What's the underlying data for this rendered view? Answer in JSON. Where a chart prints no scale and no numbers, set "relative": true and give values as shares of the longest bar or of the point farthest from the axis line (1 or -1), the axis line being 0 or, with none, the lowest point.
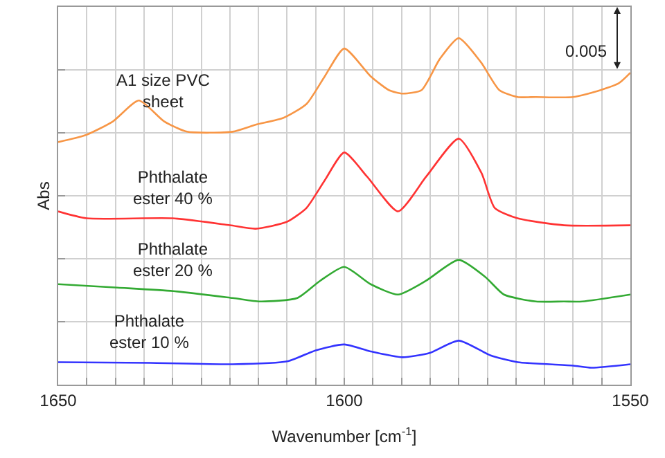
{
  "chart_data": {
    "type": "line",
    "relative": true,
    "xlabel": "Wavenumber [cm$^{-1}$]",
    "ylabel": "Abs",
    "xlim": [
      1650,
      1550
    ],
    "xticks": [
      1650,
      {
        "value": 1645,
        "label": null
      },
      {
        "value": 1640,
        "label": null
      },
      {
        "value": 1635,
        "label": null
      },
      {
        "value": 1630,
        "label": null
      },
      {
        "value": 1625,
        "label": null
      },
      {
        "value": 1620,
        "label": null
      },
      {
        "value": 1615,
        "label": null
      },
      {
        "value": 1610,
        "label": null
      },
      {
        "value": 1605,
        "label": null
      },
      1600,
      {
        "value": 1595,
        "label": null
      },
      {
        "value": 1590,
        "label": null
      },
      {
        "value": 1585,
        "label": null
      },
      {
        "value": 1580,
        "label": null
      },
      {
        "value": 1575,
        "label": null
      },
      {
        "value": 1570,
        "label": null
      },
      {
        "value": 1565,
        "label": null
      },
      {
        "value": 1560,
        "label": null
      },
      {
        "value": 1555,
        "label": null
      },
      1550
    ],
    "grid": true,
    "legend": false,
    "marker": "none",
    "line_style": "solid",
    "annotations": [
      "0.005"
    ],
    "series": [
      {
        "name": "A1 size PVC sheet",
        "color": "#f79646",
        "x": [
          1650,
          1645.2,
          1640.4,
          1635.9,
          1631.5,
          1627.5,
          1619.5,
          1615.5,
          1610.6,
          1606.6,
          1603.4,
          1600,
          1595.4,
          1592.2,
          1589.8,
          1586.5,
          1583.3,
          1580,
          1576.1,
          1572.9,
          1569.7,
          1566.5,
          1560,
          1555.2,
          1552,
          1550
        ],
        "values": [
          0.7,
          0.72,
          0.76,
          0.82,
          0.76,
          0.73,
          0.73,
          0.75,
          0.77,
          0.81,
          0.89,
          0.97,
          0.89,
          0.85,
          0.84,
          0.85,
          0.94,
          1.0,
          0.93,
          0.85,
          0.83,
          0.83,
          0.83,
          0.85,
          0.87,
          0.9
        ]
      },
      {
        "name": "Phthalate ester 40 %",
        "color": "#ff3333",
        "x": [
          1650,
          1645,
          1630,
          1620,
          1615.5,
          1610,
          1606.6,
          1603.4,
          1600,
          1596,
          1590.6,
          1585.7,
          1580,
          1576,
          1573.7,
          1569.7,
          1561.6,
          1550
        ],
        "values": [
          0.5,
          0.48,
          0.48,
          0.46,
          0.45,
          0.47,
          0.51,
          0.59,
          0.67,
          0.6,
          0.5,
          0.6,
          0.71,
          0.61,
          0.51,
          0.48,
          0.46,
          0.46
        ]
      },
      {
        "name": "Phthalate ester 20 %",
        "color": "#33aa33",
        "x": [
          1650,
          1639.6,
          1629.9,
          1619.5,
          1614.7,
          1608.2,
          1604.2,
          1600,
          1595.4,
          1590.6,
          1585.7,
          1580,
          1575.3,
          1572.1,
          1566.5,
          1561.6,
          1558.4,
          1550
        ],
        "values": [
          0.29,
          0.28,
          0.27,
          0.25,
          0.24,
          0.25,
          0.3,
          0.34,
          0.29,
          0.26,
          0.3,
          0.36,
          0.31,
          0.26,
          0.24,
          0.24,
          0.24,
          0.26
        ]
      },
      {
        "name": "Phthalate ester 10 %",
        "color": "#3333ff",
        "x": [
          1650,
          1633.9,
          1619.5,
          1609.8,
          1605,
          1600,
          1595.4,
          1589.8,
          1585,
          1580,
          1574.5,
          1569.7,
          1560,
          1556.8,
          1550
        ],
        "values": [
          0.065,
          0.063,
          0.059,
          0.068,
          0.099,
          0.116,
          0.096,
          0.079,
          0.092,
          0.127,
          0.085,
          0.065,
          0.055,
          0.049,
          0.059
        ]
      }
    ]
  }
}
